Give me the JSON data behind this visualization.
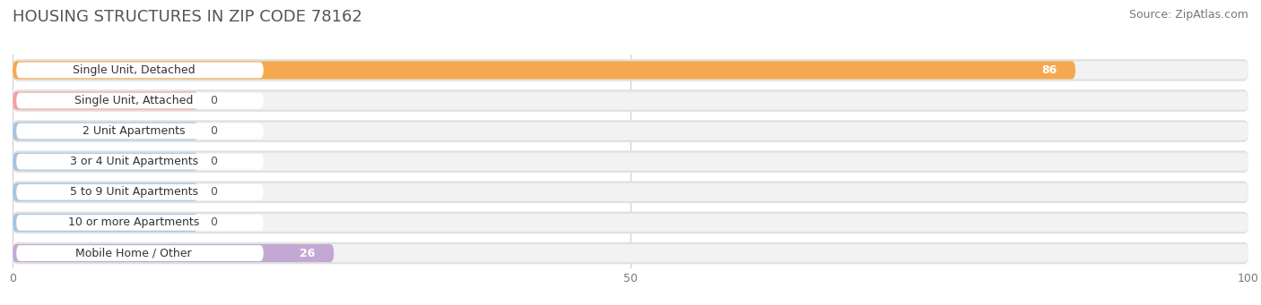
{
  "title": "HOUSING STRUCTURES IN ZIP CODE 78162",
  "source": "Source: ZipAtlas.com",
  "categories": [
    "Single Unit, Detached",
    "Single Unit, Attached",
    "2 Unit Apartments",
    "3 or 4 Unit Apartments",
    "5 to 9 Unit Apartments",
    "10 or more Apartments",
    "Mobile Home / Other"
  ],
  "values": [
    86,
    0,
    0,
    0,
    0,
    0,
    26
  ],
  "bar_colors": [
    "#f5a94e",
    "#f4a0a0",
    "#a8c4e0",
    "#a8c4e0",
    "#a8c4e0",
    "#a8c4e0",
    "#c4a8d4"
  ],
  "xlim": [
    0,
    100
  ],
  "xticks": [
    0,
    50,
    100
  ],
  "bar_height": 0.72,
  "row_bg_color": "#e8e8e8",
  "row_inner_color": "#f5f5f5",
  "label_bg_color": "#ffffff",
  "fig_bg_color": "#ffffff",
  "value_label_color_inside": "#ffffff",
  "value_label_color_outside": "#555555",
  "title_fontsize": 13,
  "source_fontsize": 9,
  "label_fontsize": 9,
  "value_fontsize": 9,
  "min_bar_display": 15
}
